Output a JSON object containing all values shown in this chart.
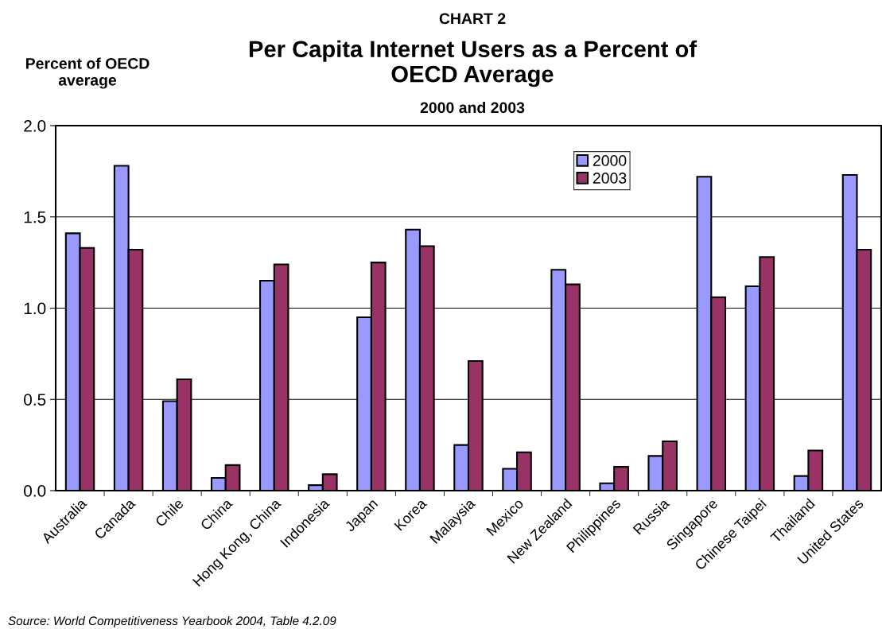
{
  "chart_data": {
    "type": "bar",
    "title": "Per Capita Internet Users as a Percent of OECD Average",
    "subtitle": "2000 and 2003",
    "ylabel": "Percent of OECD average",
    "annotations": [
      "CHART 2",
      "Source: World Competitiveness Yearbook 2004, Table 4.2.09"
    ],
    "categories": [
      "Australia",
      "Canada",
      "Chile",
      "China",
      "Hong Kong, China",
      "Indonesia",
      "Japan",
      "Korea",
      "Malaysia",
      "Mexico",
      "New Zealand",
      "Philippines",
      "Russia",
      "Singapore",
      "Chinese Taipei",
      "Thailand",
      "United States"
    ],
    "series": [
      {
        "name": "2000",
        "color": "#9999ff",
        "values": [
          1.41,
          1.78,
          0.49,
          0.07,
          1.15,
          0.03,
          0.95,
          1.43,
          0.25,
          0.12,
          1.21,
          0.04,
          0.19,
          1.72,
          1.12,
          0.08,
          1.73
        ]
      },
      {
        "name": "2003",
        "color": "#993366",
        "values": [
          1.33,
          1.32,
          0.61,
          0.14,
          1.24,
          0.09,
          1.25,
          1.34,
          0.71,
          0.21,
          1.13,
          0.13,
          0.27,
          1.06,
          1.28,
          0.22,
          1.32
        ]
      }
    ],
    "ylim": [
      0,
      2
    ],
    "yticks": [
      {
        "value": 0,
        "label": "0.0"
      },
      {
        "value": 0.5,
        "label": "0.5"
      },
      {
        "value": 1,
        "label": "1.0"
      },
      {
        "value": 1.5,
        "label": "1.5"
      },
      {
        "value": 2,
        "label": "2.0"
      }
    ],
    "grid": "y",
    "legend": "top right"
  }
}
